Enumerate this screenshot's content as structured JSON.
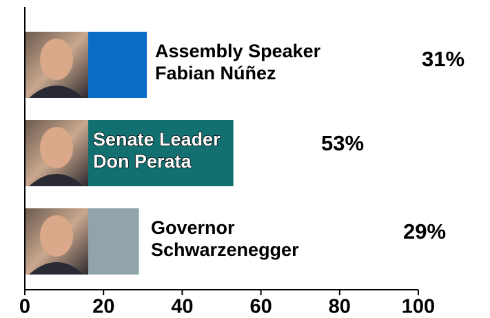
{
  "chart_data": {
    "type": "barh",
    "categories": [
      [
        "Assembly Speaker",
        "Fabian Núñez"
      ],
      [
        "Senate Leader",
        "Don Perata"
      ],
      [
        "Governor",
        "Schwarzenegger"
      ]
    ],
    "values": [
      31,
      53,
      29
    ],
    "value_labels": [
      "31%",
      "53%",
      "29%"
    ],
    "colors": [
      "#0a6ec6",
      "#127070",
      "#90a4aa"
    ],
    "xlim": [
      0,
      100
    ],
    "xticks": [
      0,
      20,
      40,
      60,
      80,
      100
    ],
    "grid": false
  }
}
